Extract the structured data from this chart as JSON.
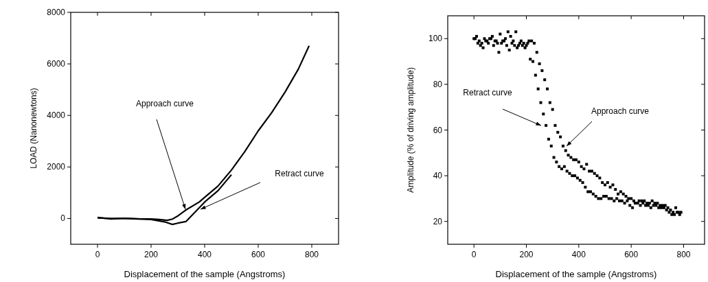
{
  "chart_data": [
    {
      "type": "line",
      "xlabel": "Displacement of the sample (Angstroms)",
      "ylabel": "LOAD (Nanonewtons)",
      "xlim": [
        -100,
        900
      ],
      "xticks": [
        0,
        200,
        400,
        600,
        800
      ],
      "ylim": [
        -1000,
        8000
      ],
      "yticks": [
        0,
        2000,
        4000,
        6000,
        8000
      ],
      "grid": false,
      "line_style": "solid",
      "annotations": [
        "Approach curve",
        "Retract curve"
      ],
      "series": [
        {
          "color": "#000000",
          "x": [
            0,
            50,
            100,
            150,
            200,
            230,
            260,
            280,
            300,
            330,
            380,
            400,
            450,
            500,
            550,
            600,
            650,
            700,
            750,
            790
          ],
          "values": [
            20,
            0,
            0,
            -20,
            -20,
            -40,
            -70,
            -20,
            100,
            330,
            640,
            820,
            1260,
            1880,
            2600,
            3400,
            4100,
            4900,
            5800,
            6700
          ]
        },
        {
          "color": "#000000",
          "x": [
            0,
            50,
            100,
            150,
            200,
            250,
            280,
            300,
            330,
            380,
            400,
            450,
            500
          ],
          "values": [
            40,
            -20,
            10,
            -10,
            -40,
            -130,
            -230,
            -180,
            -120,
            420,
            640,
            1080,
            1700
          ]
        }
      ]
    },
    {
      "type": "scatter",
      "xlabel": "Displacement of the sample (Angstroms)",
      "ylabel": "Amplitude (% of driving amplitude)",
      "xlim": [
        -100,
        880
      ],
      "xticks": [
        0,
        200,
        400,
        600,
        800
      ],
      "ylim": [
        10,
        110
      ],
      "yticks": [
        20,
        40,
        60,
        80,
        100
      ],
      "grid": false,
      "marker": "square",
      "annotations": [
        "Retract curve",
        "Approach curve"
      ],
      "series": [
        {
          "color": "#000000",
          "x": [
            5,
            15,
            25,
            35,
            45,
            55,
            65,
            75,
            85,
            95,
            105,
            115,
            125,
            135,
            145,
            155,
            165,
            175,
            185,
            195,
            205,
            215,
            225,
            235,
            245,
            255,
            265,
            275,
            285,
            295,
            305,
            315,
            325,
            335,
            345,
            355,
            365,
            375,
            385,
            395,
            405,
            415,
            425,
            435,
            445,
            455,
            465,
            475,
            485,
            495,
            505,
            515,
            525,
            535,
            545,
            555,
            565,
            575,
            585,
            595,
            605,
            615,
            625,
            635,
            645,
            655,
            665,
            675,
            685,
            695,
            705,
            715,
            725,
            735,
            745,
            755,
            765,
            775,
            785
          ],
          "values": [
            100,
            98,
            97,
            96,
            99,
            98,
            100,
            97,
            99,
            94,
            98,
            99,
            97,
            95,
            98,
            97,
            96,
            98,
            97,
            96,
            98,
            91,
            90,
            84,
            78,
            72,
            67,
            62,
            56,
            53,
            48,
            46,
            44,
            43,
            44,
            42,
            41,
            40,
            40,
            39,
            38,
            37,
            35,
            33,
            33,
            32,
            31,
            30,
            30,
            31,
            31,
            30,
            30,
            29,
            30,
            29,
            29,
            28,
            29,
            27,
            26,
            28,
            28,
            27,
            28,
            27,
            27,
            26,
            27,
            27,
            26,
            26,
            26,
            25,
            24,
            23,
            23,
            24,
            23
          ]
        },
        {
          "color": "#000000",
          "x": [
            0,
            10,
            20,
            30,
            40,
            50,
            60,
            70,
            80,
            90,
            100,
            110,
            120,
            130,
            140,
            150,
            160,
            170,
            180,
            190,
            200,
            210,
            220,
            230,
            240,
            250,
            260,
            270,
            280,
            290,
            300,
            310,
            320,
            330,
            340,
            350,
            360,
            370,
            380,
            390,
            400,
            410,
            420,
            430,
            440,
            450,
            460,
            470,
            480,
            490,
            500,
            510,
            520,
            530,
            540,
            550,
            560,
            570,
            580,
            590,
            600,
            610,
            620,
            630,
            640,
            650,
            660,
            670,
            680,
            690,
            700,
            710,
            720,
            730,
            740,
            750,
            760,
            770,
            780,
            790
          ],
          "values": [
            100,
            101,
            99,
            98,
            100,
            99,
            100,
            101,
            99,
            98,
            102,
            99,
            100,
            103,
            101,
            99,
            103,
            97,
            99,
            98,
            97,
            99,
            99,
            98,
            94,
            89,
            86,
            82,
            78,
            72,
            69,
            62,
            59,
            57,
            53,
            51,
            49,
            48,
            47,
            47,
            46,
            44,
            43,
            45,
            42,
            42,
            41,
            40,
            39,
            37,
            36,
            37,
            35,
            36,
            34,
            32,
            33,
            32,
            31,
            30,
            30,
            29,
            28,
            29,
            29,
            29,
            28,
            28,
            29,
            28,
            28,
            27,
            27,
            27,
            26,
            25,
            24,
            26,
            24,
            24
          ]
        }
      ]
    }
  ]
}
